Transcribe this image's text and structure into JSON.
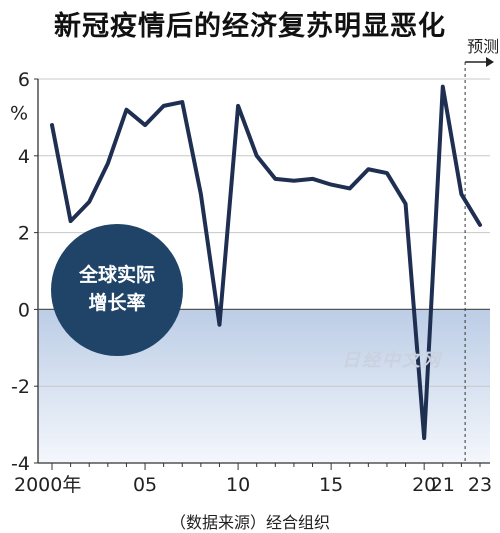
{
  "chart_data": {
    "type": "line",
    "title": "新冠疫情后的经济复苏明显恶化",
    "ylabel": "%",
    "ylim": [
      -4,
      6
    ],
    "yticks": [
      6,
      4,
      2,
      0,
      -2,
      -4
    ],
    "xlim": [
      2000,
      2023
    ],
    "xtick_labels": [
      {
        "x": 2000,
        "label": "2000年"
      },
      {
        "x": 2005,
        "label": "05"
      },
      {
        "x": 2010,
        "label": "10"
      },
      {
        "x": 2015,
        "label": "15"
      },
      {
        "x": 2020,
        "label": "20"
      },
      {
        "x": 2021,
        "label": "21"
      },
      {
        "x": 2023,
        "label": "23"
      }
    ],
    "forecast_start": 2022,
    "forecast_label": "预测",
    "badge": [
      "全球实际",
      "增长率"
    ],
    "source": "（数据来源）经合组织",
    "series": [
      {
        "x": [
          2000,
          2001,
          2002,
          2003,
          2004,
          2005,
          2006,
          2007,
          2008,
          2009,
          2010,
          2011,
          2012,
          2013,
          2014,
          2015,
          2016,
          2017,
          2018,
          2019,
          2020,
          2021,
          2022,
          2023
        ],
        "values": [
          4.8,
          2.3,
          2.8,
          3.8,
          5.2,
          4.8,
          5.3,
          5.4,
          3.0,
          -0.4,
          5.3,
          4.0,
          3.4,
          3.35,
          3.4,
          3.25,
          3.15,
          3.65,
          3.55,
          2.75,
          -3.35,
          5.8,
          3.0,
          2.2
        ],
        "color": "#1f2f52"
      }
    ],
    "watermark": "日经中文网"
  }
}
